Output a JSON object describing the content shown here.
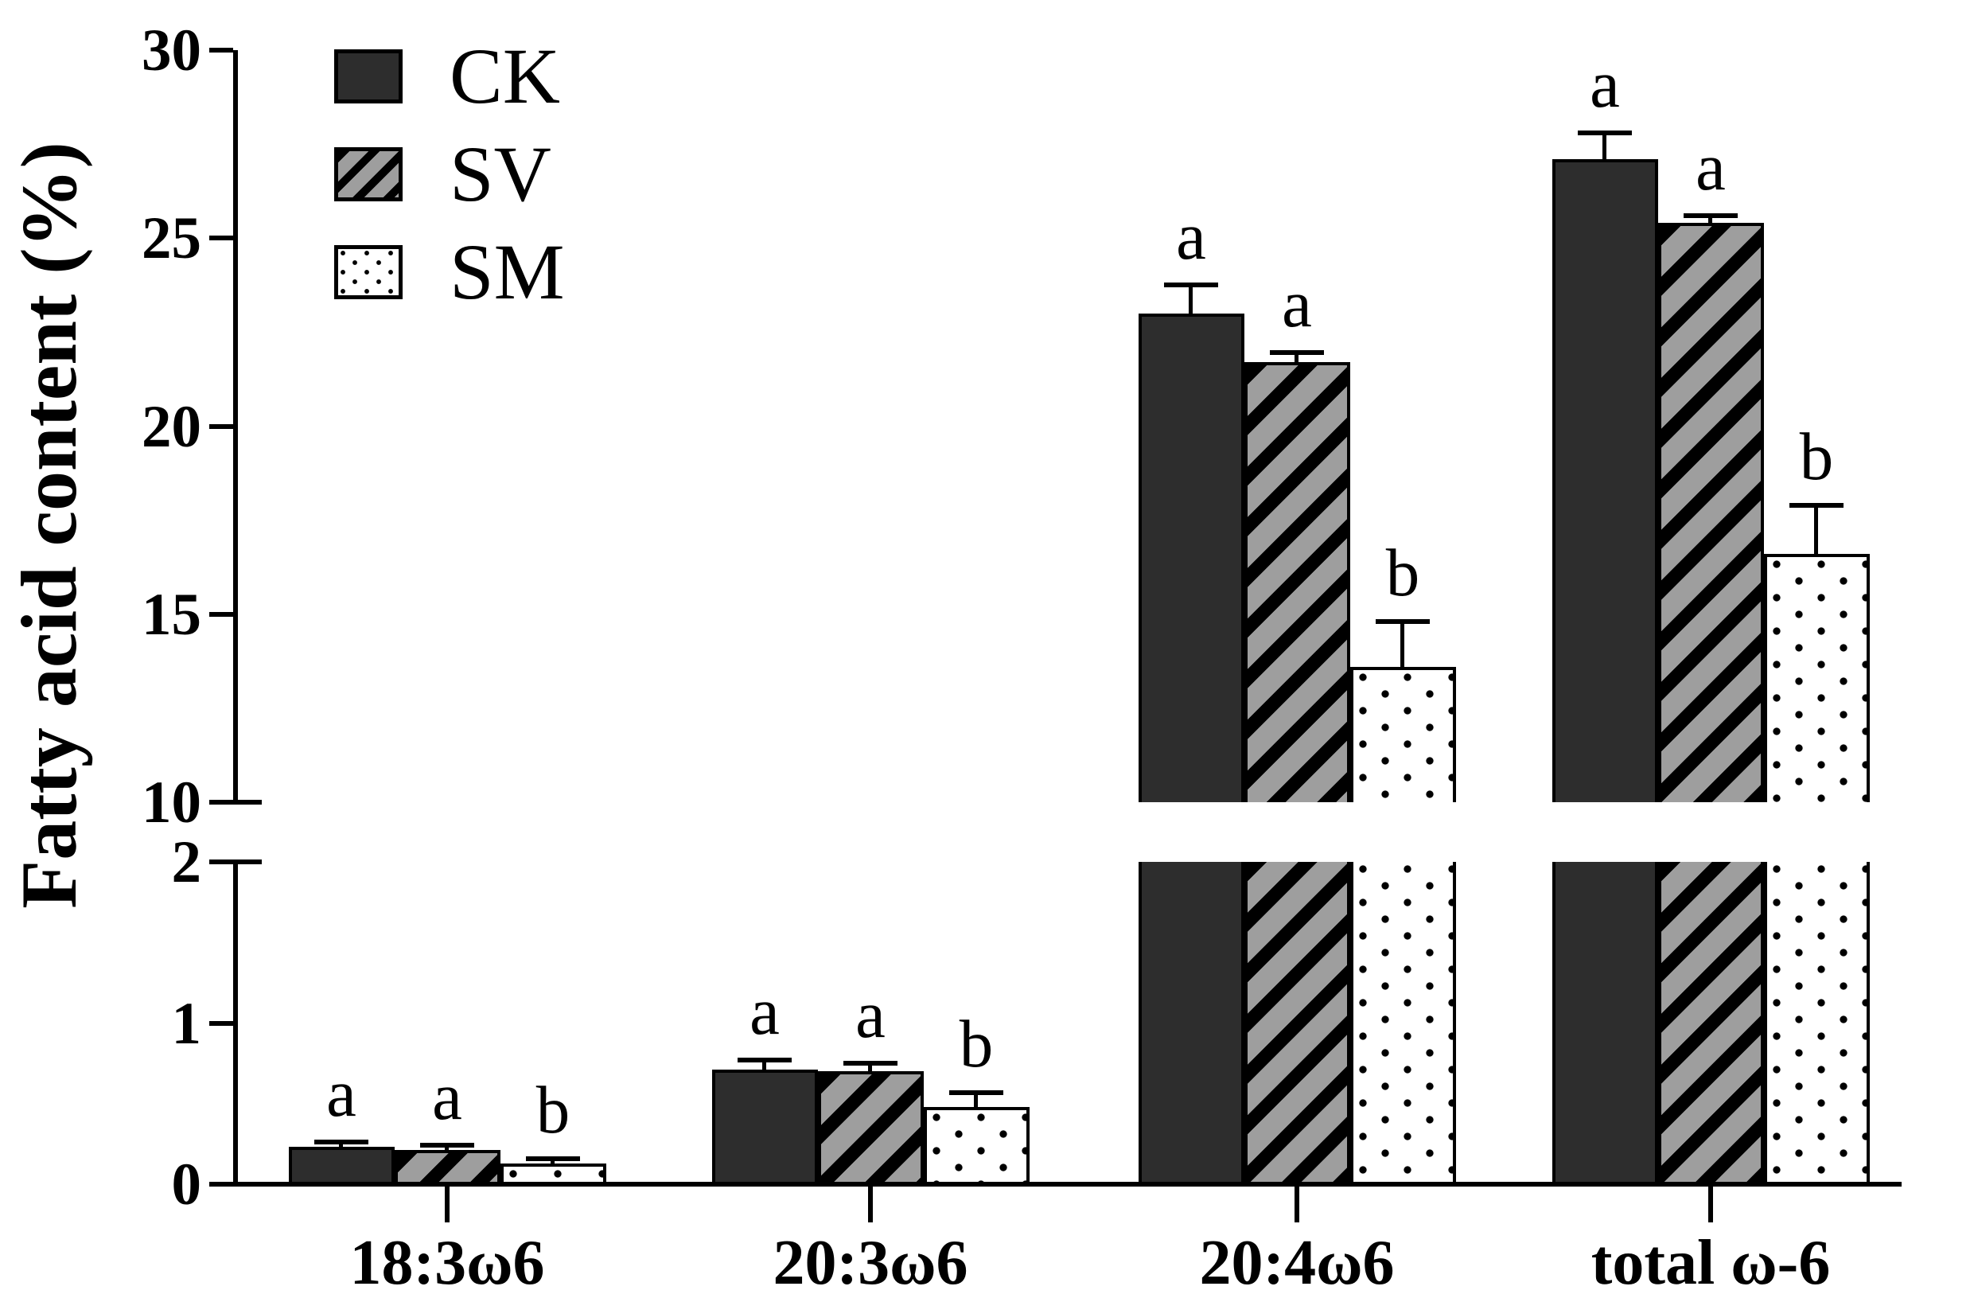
{
  "figure": {
    "ylabel": "Fatty acid content (%)"
  },
  "legend": {
    "items": [
      {
        "label": "CK",
        "pattern": "solid"
      },
      {
        "label": "SV",
        "pattern": "hatch"
      },
      {
        "label": "SM",
        "pattern": "dots"
      }
    ]
  },
  "chart_data": {
    "type": "bar",
    "title": "",
    "xlabel": "",
    "ylabel": "Fatty acid content (%)",
    "categories": [
      "18:3ω6",
      "20:3ω6",
      "20:4ω6",
      "total ω-6"
    ],
    "series": [
      {
        "name": "CK",
        "pattern": "solid",
        "values": [
          0.23,
          0.71,
          23.0,
          27.1
        ],
        "errors": [
          0.03,
          0.06,
          0.75,
          0.7
        ],
        "sig_letters": [
          "a",
          "a",
          "a",
          "a"
        ]
      },
      {
        "name": "SV",
        "pattern": "hatch",
        "values": [
          0.21,
          0.7,
          21.7,
          25.4
        ],
        "errors": [
          0.03,
          0.05,
          0.25,
          0.2
        ],
        "sig_letters": [
          "a",
          "a",
          "a",
          "a"
        ]
      },
      {
        "name": "SM",
        "pattern": "dots",
        "values": [
          0.13,
          0.48,
          13.6,
          16.6
        ],
        "errors": [
          0.03,
          0.09,
          1.2,
          1.3
        ],
        "sig_letters": [
          "b",
          "b",
          "b",
          "b"
        ]
      }
    ],
    "axis_break": {
      "lower_range": [
        0,
        2
      ],
      "lower_ticks": [
        0,
        1,
        2
      ],
      "upper_range": [
        10,
        30
      ],
      "upper_ticks": [
        10,
        15,
        20,
        25,
        30
      ]
    },
    "legend_position": "top-left",
    "grid": false,
    "error_bars": true,
    "colors": {
      "ck_fill": "#2d2d2d",
      "sv_fill": "#9e9e9e",
      "sm_fill": "#ffffff",
      "pattern_ink": "#000000",
      "axis": "#000000",
      "background": "#ffffff"
    }
  }
}
